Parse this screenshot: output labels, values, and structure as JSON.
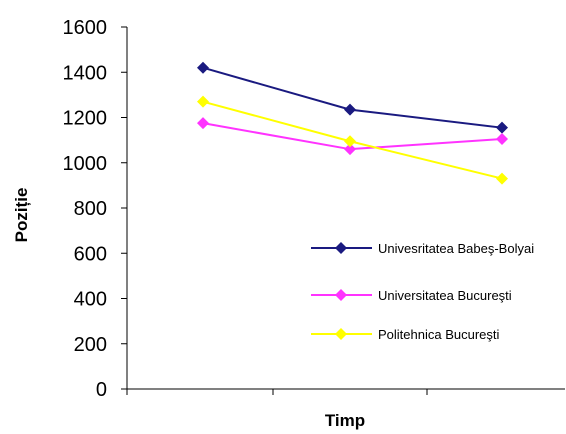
{
  "chart_data": {
    "type": "line",
    "title": "",
    "xlabel": "Timp",
    "ylabel": "Poziție",
    "ylim": [
      0,
      1600
    ],
    "y_ticks": [
      "0",
      "200",
      "400",
      "600",
      "800",
      "1000",
      "1200",
      "1400",
      "1600"
    ],
    "x": [
      1,
      2,
      3
    ],
    "grid": false,
    "legend_position": "right",
    "series": [
      {
        "name": "Univesritatea Babeş-Bolyai",
        "color": "#1a1a80",
        "values": [
          1420,
          1235,
          1155
        ]
      },
      {
        "name": "Universitatea Bucureşti",
        "color": "#ff33ff",
        "values": [
          1175,
          1060,
          1105
        ]
      },
      {
        "name": "Politehnica Bucureşti",
        "color": "#ffff00",
        "values": [
          1270,
          1095,
          930
        ]
      }
    ]
  }
}
